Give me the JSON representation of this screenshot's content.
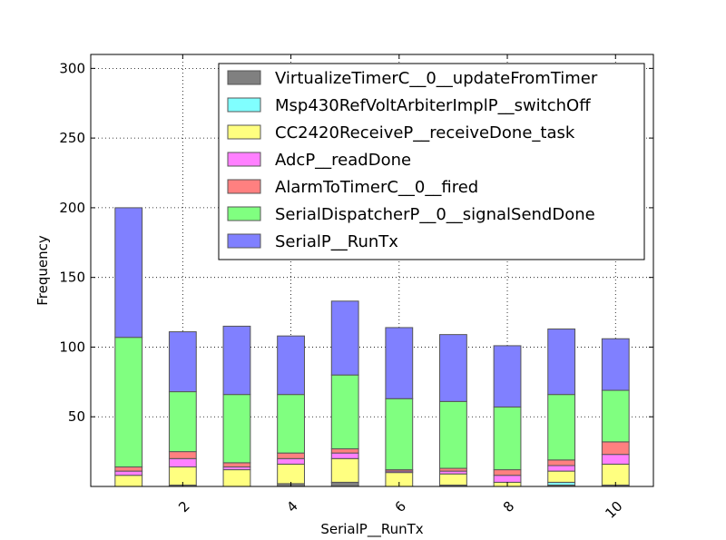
{
  "chart_data": {
    "type": "bar",
    "stacked": true,
    "xlabel": "SerialP__RunTx",
    "ylabel": "Frequency",
    "x": [
      1,
      2,
      3,
      4,
      5,
      6,
      7,
      8,
      9,
      10
    ],
    "xlim": [
      0.3,
      10.7
    ],
    "ylim": [
      0,
      310
    ],
    "xticks": [
      2,
      4,
      6,
      8,
      10
    ],
    "yticks": [
      50,
      100,
      150,
      200,
      250,
      300
    ],
    "grid": true,
    "legend_position": "top-right",
    "series": [
      {
        "name": "VirtualizeTimerC__0__updateFromTimer",
        "color": "#808080",
        "values": [
          0,
          1,
          0,
          2,
          3,
          0,
          1,
          0,
          1,
          1
        ]
      },
      {
        "name": "Msp430RefVoltArbiterImplP__switchOff",
        "color": "#80ffff",
        "values": [
          0,
          0,
          0,
          0,
          0,
          0,
          0,
          0,
          2,
          0
        ]
      },
      {
        "name": "CC2420ReceiveP__receiveDone_task",
        "color": "#ffff80",
        "values": [
          8,
          13,
          12,
          14,
          17,
          10,
          8,
          3,
          8,
          15
        ]
      },
      {
        "name": "AdcP__readDone",
        "color": "#ff80ff",
        "values": [
          3,
          6,
          2,
          4,
          4,
          1,
          2,
          5,
          4,
          7
        ]
      },
      {
        "name": "AlarmToTimerC__0__fired",
        "color": "#ff8080",
        "values": [
          3,
          5,
          3,
          4,
          3,
          1,
          2,
          4,
          4,
          9
        ]
      },
      {
        "name": "SerialDispatcherP__0__signalSendDone",
        "color": "#80ff80",
        "values": [
          93,
          43,
          49,
          42,
          53,
          51,
          48,
          45,
          47,
          37
        ]
      },
      {
        "name": "SerialP__RunTx",
        "color": "#8080ff",
        "values": [
          93,
          43,
          49,
          42,
          53,
          51,
          48,
          44,
          47,
          37
        ]
      }
    ]
  }
}
